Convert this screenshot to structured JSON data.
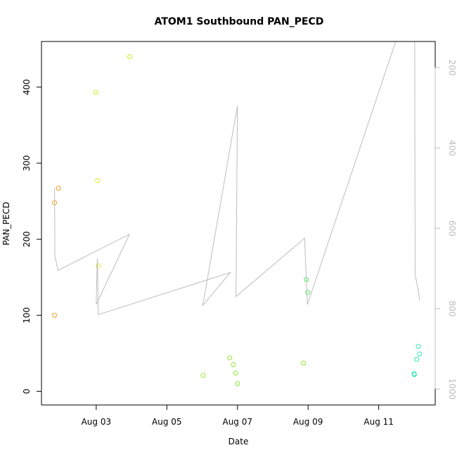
{
  "chart_data": {
    "type": "scatter",
    "title": "ATOM1 Southbound PAN_PECD",
    "xlabel": "Date",
    "ylabel": "PAN_PECD",
    "x_ticks": [
      "Aug 03",
      "Aug 05",
      "Aug 07",
      "Aug 09",
      "Aug 11"
    ],
    "x_tick_days": [
      3,
      5,
      7,
      9,
      11
    ],
    "xlim": [
      1.45,
      12.6
    ],
    "ylim": [
      -18,
      460
    ],
    "y_ticks": [
      0,
      100,
      200,
      300,
      400
    ],
    "y2_ticks": [
      200,
      400,
      600,
      800,
      1000
    ],
    "y2lim": [
      1040,
      135
    ],
    "y2_reversed": true,
    "grid": false,
    "legend": "none",
    "series": [
      {
        "kind": "points",
        "color": "#f59a1e",
        "points": [
          {
            "day": 1.82,
            "value": 248
          },
          {
            "day": 1.93,
            "value": 267
          },
          {
            "day": 1.82,
            "value": 100
          }
        ]
      },
      {
        "kind": "points",
        "color": "#d4e81c",
        "points": [
          {
            "day": 2.99,
            "value": 393
          },
          {
            "day": 3.04,
            "value": 277
          },
          {
            "day": 3.06,
            "value": 165
          },
          {
            "day": 3.95,
            "value": 440
          }
        ]
      },
      {
        "kind": "points",
        "color": "#8ee82a",
        "points": [
          {
            "day": 6.03,
            "value": 21
          },
          {
            "day": 6.78,
            "value": 44
          },
          {
            "day": 6.88,
            "value": 35
          },
          {
            "day": 6.95,
            "value": 24
          },
          {
            "day": 7.0,
            "value": 10
          },
          {
            "day": 8.87,
            "value": 37
          }
        ]
      },
      {
        "kind": "points",
        "color": "#3de85a",
        "points": [
          {
            "day": 8.95,
            "value": 147
          },
          {
            "day": 8.99,
            "value": 130
          }
        ]
      },
      {
        "kind": "points",
        "color": "#2ee8b8",
        "points": [
          {
            "day": 12.0,
            "value": 23
          },
          {
            "day": 12.01,
            "value": 22
          },
          {
            "day": 12.08,
            "value": 42
          },
          {
            "day": 12.12,
            "value": 59
          },
          {
            "day": 12.16,
            "value": 49
          }
        ]
      },
      {
        "kind": "line",
        "axis": "right",
        "color": "#bdbdbd",
        "points": [
          {
            "day": 1.82,
            "value": 500
          },
          {
            "day": 1.83,
            "value": 670
          },
          {
            "day": 1.92,
            "value": 705
          },
          {
            "day": 3.94,
            "value": 615
          },
          {
            "day": 3.0,
            "value": 790
          },
          {
            "day": 3.03,
            "value": 675
          },
          {
            "day": 3.06,
            "value": 815
          },
          {
            "day": 6.8,
            "value": 710
          },
          {
            "day": 6.02,
            "value": 792
          },
          {
            "day": 7.0,
            "value": 295
          },
          {
            "day": 6.96,
            "value": 770
          },
          {
            "day": 8.9,
            "value": 625
          },
          {
            "day": 8.98,
            "value": 790
          },
          {
            "day": 11.5,
            "value": 130
          },
          {
            "day": 12.02,
            "value": 130
          },
          {
            "day": 12.03,
            "value": 715
          },
          {
            "day": 12.12,
            "value": 755
          },
          {
            "day": 12.16,
            "value": 780
          }
        ]
      }
    ]
  }
}
